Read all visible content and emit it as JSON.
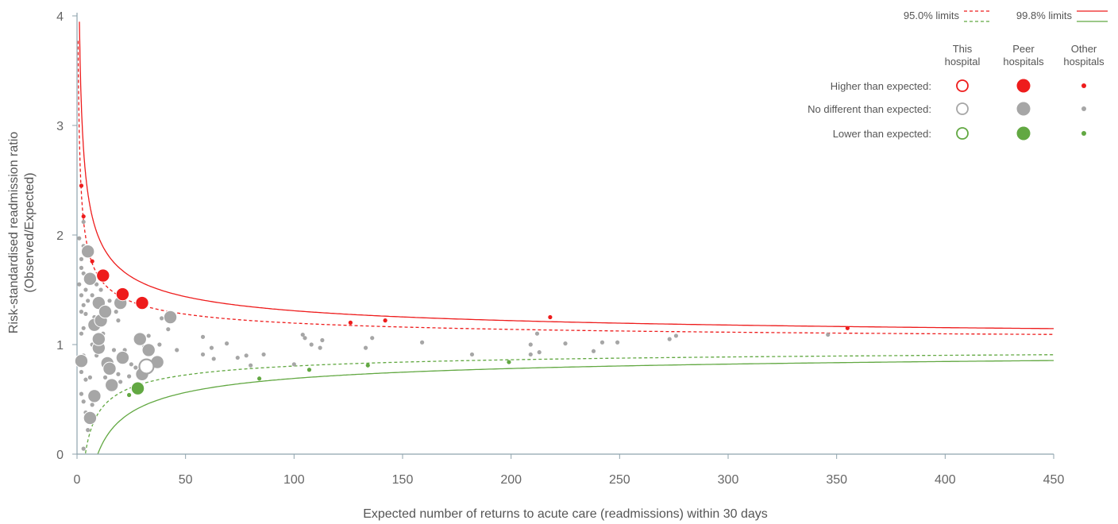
{
  "chart_data": {
    "type": "scatter",
    "xlabel": "Expected number of returns to acute care (readmissions) within 30 days",
    "ylabel_line1": "Risk-standardised readmission ratio",
    "ylabel_line2": "(Observed/Expected)",
    "xlim": [
      0,
      450
    ],
    "ylim": [
      0,
      4
    ],
    "x_ticks": [
      "0",
      "50",
      "100",
      "150",
      "200",
      "250",
      "300",
      "350",
      "400",
      "450"
    ],
    "y_ticks": [
      "0",
      "1",
      "2",
      "3",
      "4"
    ],
    "grid": false,
    "legend_position": "top-right",
    "limits": {
      "label_95": "95.0% limits",
      "label_998": "99.8% limits",
      "z_95": 1.96,
      "z_998": 3.09
    },
    "legend": {
      "columns": [
        "This\nhospital",
        "Peer\nhospitals",
        "Other\nhospitals"
      ],
      "rows": [
        {
          "label": "Higher than expected:",
          "status": "higher"
        },
        {
          "label": "No different than expected:",
          "status": "nodiff"
        },
        {
          "label": "Lower than expected:",
          "status": "lower"
        }
      ]
    },
    "colors": {
      "higher": "#ee1c1c",
      "nodiff": "#a6a6a6",
      "lower": "#62a842",
      "axis": "#8fa3ad"
    },
    "this_hospital": [
      {
        "x": 32,
        "y": 0.8,
        "status": "nodiff"
      }
    ],
    "peer_hospitals": [
      {
        "x": 2,
        "y": 0.85,
        "status": "nodiff"
      },
      {
        "x": 5,
        "y": 1.85,
        "status": "nodiff"
      },
      {
        "x": 6,
        "y": 1.6,
        "status": "nodiff"
      },
      {
        "x": 6,
        "y": 0.33,
        "status": "nodiff"
      },
      {
        "x": 8,
        "y": 1.18,
        "status": "nodiff"
      },
      {
        "x": 8,
        "y": 0.53,
        "status": "nodiff"
      },
      {
        "x": 10,
        "y": 1.38,
        "status": "nodiff"
      },
      {
        "x": 10,
        "y": 0.97,
        "status": "nodiff"
      },
      {
        "x": 10,
        "y": 1.05,
        "status": "nodiff"
      },
      {
        "x": 11,
        "y": 1.22,
        "status": "nodiff"
      },
      {
        "x": 13,
        "y": 1.3,
        "status": "nodiff"
      },
      {
        "x": 14,
        "y": 0.83,
        "status": "nodiff"
      },
      {
        "x": 15,
        "y": 0.78,
        "status": "nodiff"
      },
      {
        "x": 16,
        "y": 0.63,
        "status": "nodiff"
      },
      {
        "x": 20,
        "y": 1.38,
        "status": "nodiff"
      },
      {
        "x": 21,
        "y": 0.88,
        "status": "nodiff"
      },
      {
        "x": 29,
        "y": 1.05,
        "status": "nodiff"
      },
      {
        "x": 30,
        "y": 0.73,
        "status": "nodiff"
      },
      {
        "x": 33,
        "y": 0.95,
        "status": "nodiff"
      },
      {
        "x": 37,
        "y": 0.84,
        "status": "nodiff"
      },
      {
        "x": 43,
        "y": 1.25,
        "status": "nodiff"
      },
      {
        "x": 12,
        "y": 1.63,
        "status": "higher"
      },
      {
        "x": 21,
        "y": 1.46,
        "status": "higher"
      },
      {
        "x": 30,
        "y": 1.38,
        "status": "higher"
      },
      {
        "x": 28,
        "y": 0.6,
        "status": "lower"
      }
    ],
    "other_hospitals": [
      {
        "x": 1,
        "y": 1.97,
        "status": "nodiff"
      },
      {
        "x": 1,
        "y": 1.55,
        "status": "nodiff"
      },
      {
        "x": 2,
        "y": 1.78,
        "status": "nodiff"
      },
      {
        "x": 2,
        "y": 1.7,
        "status": "nodiff"
      },
      {
        "x": 2,
        "y": 1.45,
        "status": "nodiff"
      },
      {
        "x": 2,
        "y": 1.3,
        "status": "nodiff"
      },
      {
        "x": 2,
        "y": 1.1,
        "status": "nodiff"
      },
      {
        "x": 2,
        "y": 0.75,
        "status": "nodiff"
      },
      {
        "x": 2,
        "y": 0.55,
        "status": "nodiff"
      },
      {
        "x": 3,
        "y": 2.12,
        "status": "nodiff"
      },
      {
        "x": 3,
        "y": 1.9,
        "status": "nodiff"
      },
      {
        "x": 3,
        "y": 1.65,
        "status": "nodiff"
      },
      {
        "x": 3,
        "y": 1.36,
        "status": "nodiff"
      },
      {
        "x": 3,
        "y": 1.15,
        "status": "nodiff"
      },
      {
        "x": 3,
        "y": 0.9,
        "status": "nodiff"
      },
      {
        "x": 3,
        "y": 0.48,
        "status": "nodiff"
      },
      {
        "x": 3,
        "y": 0.05,
        "status": "nodiff"
      },
      {
        "x": 4,
        "y": 1.5,
        "status": "nodiff"
      },
      {
        "x": 4,
        "y": 1.28,
        "status": "nodiff"
      },
      {
        "x": 4,
        "y": 0.68,
        "status": "nodiff"
      },
      {
        "x": 4,
        "y": 0.38,
        "status": "nodiff"
      },
      {
        "x": 5,
        "y": 1.4,
        "status": "nodiff"
      },
      {
        "x": 5,
        "y": 0.22,
        "status": "nodiff"
      },
      {
        "x": 6,
        "y": 0.7,
        "status": "nodiff"
      },
      {
        "x": 7,
        "y": 1.45,
        "status": "nodiff"
      },
      {
        "x": 7,
        "y": 1.0,
        "status": "nodiff"
      },
      {
        "x": 7,
        "y": 0.45,
        "status": "nodiff"
      },
      {
        "x": 8,
        "y": 1.25,
        "status": "nodiff"
      },
      {
        "x": 9,
        "y": 1.55,
        "status": "nodiff"
      },
      {
        "x": 9,
        "y": 0.9,
        "status": "nodiff"
      },
      {
        "x": 11,
        "y": 1.5,
        "status": "nodiff"
      },
      {
        "x": 12,
        "y": 1.1,
        "status": "nodiff"
      },
      {
        "x": 13,
        "y": 0.7,
        "status": "nodiff"
      },
      {
        "x": 15,
        "y": 1.4,
        "status": "nodiff"
      },
      {
        "x": 17,
        "y": 0.95,
        "status": "nodiff"
      },
      {
        "x": 18,
        "y": 1.3,
        "status": "nodiff"
      },
      {
        "x": 19,
        "y": 1.22,
        "status": "nodiff"
      },
      {
        "x": 19,
        "y": 0.73,
        "status": "nodiff"
      },
      {
        "x": 20,
        "y": 0.66,
        "status": "nodiff"
      },
      {
        "x": 22,
        "y": 0.95,
        "status": "nodiff"
      },
      {
        "x": 24,
        "y": 0.71,
        "status": "nodiff"
      },
      {
        "x": 25,
        "y": 0.82,
        "status": "nodiff"
      },
      {
        "x": 27,
        "y": 0.79,
        "status": "nodiff"
      },
      {
        "x": 31,
        "y": 0.98,
        "status": "nodiff"
      },
      {
        "x": 33,
        "y": 1.08,
        "status": "nodiff"
      },
      {
        "x": 38,
        "y": 1.0,
        "status": "nodiff"
      },
      {
        "x": 39,
        "y": 1.24,
        "status": "nodiff"
      },
      {
        "x": 42,
        "y": 1.14,
        "status": "nodiff"
      },
      {
        "x": 46,
        "y": 0.95,
        "status": "nodiff"
      },
      {
        "x": 58,
        "y": 1.07,
        "status": "nodiff"
      },
      {
        "x": 58,
        "y": 0.91,
        "status": "nodiff"
      },
      {
        "x": 62,
        "y": 0.97,
        "status": "nodiff"
      },
      {
        "x": 63,
        "y": 0.87,
        "status": "nodiff"
      },
      {
        "x": 69,
        "y": 1.01,
        "status": "nodiff"
      },
      {
        "x": 74,
        "y": 0.88,
        "status": "nodiff"
      },
      {
        "x": 78,
        "y": 0.9,
        "status": "nodiff"
      },
      {
        "x": 80,
        "y": 0.81,
        "status": "nodiff"
      },
      {
        "x": 86,
        "y": 0.91,
        "status": "nodiff"
      },
      {
        "x": 100,
        "y": 0.82,
        "status": "nodiff"
      },
      {
        "x": 104,
        "y": 1.09,
        "status": "nodiff"
      },
      {
        "x": 105,
        "y": 1.06,
        "status": "nodiff"
      },
      {
        "x": 108,
        "y": 1.0,
        "status": "nodiff"
      },
      {
        "x": 112,
        "y": 0.97,
        "status": "nodiff"
      },
      {
        "x": 113,
        "y": 1.04,
        "status": "nodiff"
      },
      {
        "x": 133,
        "y": 0.97,
        "status": "nodiff"
      },
      {
        "x": 136,
        "y": 1.06,
        "status": "nodiff"
      },
      {
        "x": 159,
        "y": 1.02,
        "status": "nodiff"
      },
      {
        "x": 182,
        "y": 0.91,
        "status": "nodiff"
      },
      {
        "x": 209,
        "y": 1.0,
        "status": "nodiff"
      },
      {
        "x": 209,
        "y": 0.91,
        "status": "nodiff"
      },
      {
        "x": 212,
        "y": 1.1,
        "status": "nodiff"
      },
      {
        "x": 213,
        "y": 0.93,
        "status": "nodiff"
      },
      {
        "x": 225,
        "y": 1.01,
        "status": "nodiff"
      },
      {
        "x": 238,
        "y": 0.94,
        "status": "nodiff"
      },
      {
        "x": 242,
        "y": 1.02,
        "status": "nodiff"
      },
      {
        "x": 249,
        "y": 1.02,
        "status": "nodiff"
      },
      {
        "x": 273,
        "y": 1.05,
        "status": "nodiff"
      },
      {
        "x": 276,
        "y": 1.08,
        "status": "nodiff"
      },
      {
        "x": 346,
        "y": 1.09,
        "status": "nodiff"
      },
      {
        "x": 2,
        "y": 2.45,
        "status": "higher"
      },
      {
        "x": 3,
        "y": 2.17,
        "status": "higher"
      },
      {
        "x": 7,
        "y": 1.76,
        "status": "higher"
      },
      {
        "x": 126,
        "y": 1.2,
        "status": "higher"
      },
      {
        "x": 142,
        "y": 1.22,
        "status": "higher"
      },
      {
        "x": 218,
        "y": 1.25,
        "status": "higher"
      },
      {
        "x": 355,
        "y": 1.15,
        "status": "higher"
      },
      {
        "x": 24,
        "y": 0.54,
        "status": "lower"
      },
      {
        "x": 84,
        "y": 0.69,
        "status": "lower"
      },
      {
        "x": 107,
        "y": 0.77,
        "status": "lower"
      },
      {
        "x": 134,
        "y": 0.81,
        "status": "lower"
      },
      {
        "x": 199,
        "y": 0.84,
        "status": "lower"
      }
    ]
  }
}
